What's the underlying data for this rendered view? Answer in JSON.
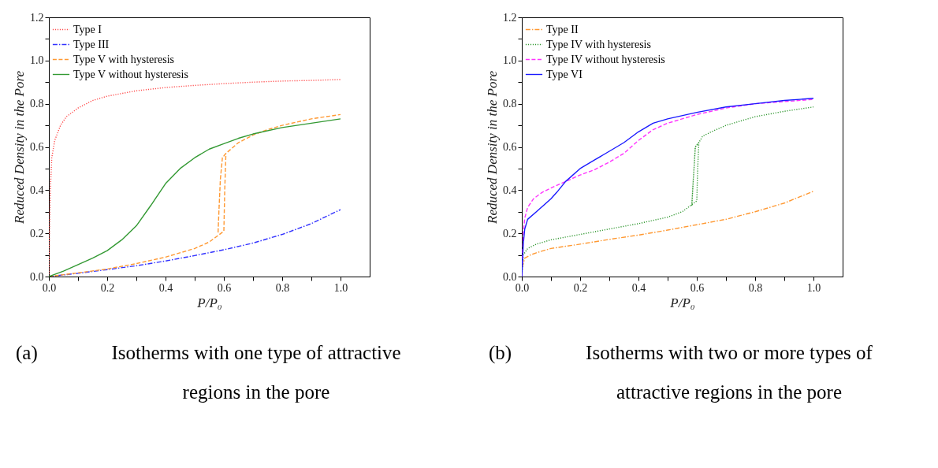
{
  "chart_data": [
    {
      "type": "line",
      "xlabel": "P/P₀",
      "ylabel": "Reduced Density in the Pore",
      "xlim": [
        0,
        1.1
      ],
      "ylim": [
        0,
        1.2
      ],
      "xticks": [
        {
          "value": 0,
          "label": "0.0"
        },
        {
          "value": 0.1,
          "label": null
        },
        0.2,
        {
          "value": 0.3,
          "label": null
        },
        0.4,
        {
          "value": 0.5,
          "label": null
        },
        0.6,
        {
          "value": 0.7,
          "label": null
        },
        0.8,
        {
          "value": 0.9,
          "label": null
        },
        {
          "value": 1,
          "label": "1.0"
        }
      ],
      "yticks": [
        {
          "value": 0,
          "label": "0.0"
        },
        {
          "value": 0.1,
          "label": null
        },
        0.2,
        {
          "value": 0.3,
          "label": null
        },
        0.4,
        {
          "value": 0.5,
          "label": null
        },
        0.6,
        {
          "value": 0.7,
          "label": null
        },
        0.8,
        {
          "value": 0.9,
          "label": null
        },
        {
          "value": 1,
          "label": "1.0"
        },
        {
          "value": 1.1,
          "label": null
        },
        1.2
      ],
      "grid": false,
      "legend": "top left",
      "marker": "none",
      "annotations": [
        "(a)",
        "Isotherms with one type of attractive regions in the pore"
      ],
      "series": [
        {
          "name": "Type I",
          "color": "#ff4d4d",
          "line_style": "dotted",
          "x": [
            0,
            0.002,
            0.005,
            0.01,
            0.02,
            0.04,
            0.06,
            0.1,
            0.15,
            0.2,
            0.3,
            0.4,
            0.5,
            0.6,
            0.7,
            0.8,
            0.9,
            1.0
          ],
          "values": [
            0,
            0.2,
            0.4,
            0.55,
            0.63,
            0.7,
            0.74,
            0.78,
            0.815,
            0.835,
            0.86,
            0.875,
            0.885,
            0.893,
            0.9,
            0.905,
            0.908,
            0.912
          ]
        },
        {
          "name": "Type III",
          "color": "#3333ff",
          "line_style": "dashdot",
          "x": [
            0,
            0.1,
            0.2,
            0.3,
            0.4,
            0.5,
            0.6,
            0.7,
            0.8,
            0.9,
            1.0
          ],
          "values": [
            0,
            0.015,
            0.032,
            0.05,
            0.072,
            0.097,
            0.124,
            0.155,
            0.195,
            0.245,
            0.31
          ]
        },
        {
          "name": "Type V with hysteresis",
          "color": "#ff9933",
          "line_style": "dashed",
          "x": [
            0,
            0.1,
            0.2,
            0.3,
            0.4,
            0.5,
            0.55,
            0.575,
            0.6,
            0.603,
            0.607,
            0.595,
            0.588,
            0.583,
            0.58,
            0.583,
            0.588,
            0.595,
            0.607,
            0.65,
            0.7,
            0.75,
            0.8,
            0.9,
            1.0
          ],
          "values": [
            0,
            0.017,
            0.035,
            0.06,
            0.09,
            0.13,
            0.16,
            0.185,
            0.21,
            0.4,
            0.57,
            0.55,
            0.45,
            0.3,
            0.2,
            0.3,
            0.45,
            0.55,
            0.57,
            0.62,
            0.655,
            0.68,
            0.7,
            0.73,
            0.75
          ]
        },
        {
          "name": "Type V without hysteresis",
          "color": "#339933",
          "line_style": "solid",
          "x": [
            0,
            0.05,
            0.1,
            0.15,
            0.2,
            0.25,
            0.3,
            0.35,
            0.4,
            0.45,
            0.5,
            0.55,
            0.6,
            0.65,
            0.7,
            0.8,
            0.9,
            1.0
          ],
          "values": [
            0,
            0.025,
            0.055,
            0.085,
            0.12,
            0.17,
            0.235,
            0.33,
            0.43,
            0.5,
            0.55,
            0.59,
            0.615,
            0.64,
            0.66,
            0.69,
            0.71,
            0.73
          ]
        }
      ]
    },
    {
      "type": "line",
      "xlabel": "P/P₀",
      "ylabel": "Reduced Density in the Pore",
      "xlim": [
        0,
        1.1
      ],
      "ylim": [
        0,
        1.2
      ],
      "xticks": [
        {
          "value": 0,
          "label": "0.0"
        },
        {
          "value": 0.1,
          "label": null
        },
        0.2,
        {
          "value": 0.3,
          "label": null
        },
        0.4,
        {
          "value": 0.5,
          "label": null
        },
        0.6,
        {
          "value": 0.7,
          "label": null
        },
        0.8,
        {
          "value": 0.9,
          "label": null
        },
        {
          "value": 1,
          "label": "1.0"
        }
      ],
      "yticks": [
        {
          "value": 0,
          "label": "0.0"
        },
        {
          "value": 0.1,
          "label": null
        },
        0.2,
        {
          "value": 0.3,
          "label": null
        },
        0.4,
        {
          "value": 0.5,
          "label": null
        },
        0.6,
        {
          "value": 0.7,
          "label": null
        },
        0.8,
        {
          "value": 0.9,
          "label": null
        },
        {
          "value": 1,
          "label": "1.0"
        },
        {
          "value": 1.1,
          "label": null
        },
        1.2
      ],
      "grid": false,
      "legend": "top left",
      "marker": "none",
      "annotations": [
        "(b)",
        "Isotherms with two or more types of attractive regions in the pore"
      ],
      "series": [
        {
          "name": "Type II",
          "color": "#ff9933",
          "line_style": "dashdot",
          "x": [
            0,
            0.003,
            0.01,
            0.03,
            0.05,
            0.1,
            0.2,
            0.3,
            0.4,
            0.5,
            0.6,
            0.7,
            0.8,
            0.9,
            1.0
          ],
          "values": [
            0,
            0.05,
            0.085,
            0.1,
            0.11,
            0.13,
            0.15,
            0.172,
            0.192,
            0.215,
            0.24,
            0.265,
            0.3,
            0.34,
            0.395
          ]
        },
        {
          "name": "Type IV with hysteresis",
          "color": "#339933",
          "line_style": "dotted",
          "x": [
            0,
            0.005,
            0.02,
            0.05,
            0.1,
            0.2,
            0.3,
            0.4,
            0.5,
            0.55,
            0.58,
            0.6,
            0.603,
            0.607,
            0.595,
            0.588,
            0.583,
            0.588,
            0.595,
            0.607,
            0.62,
            0.65,
            0.7,
            0.8,
            0.9,
            1.0
          ],
          "values": [
            0,
            0.1,
            0.13,
            0.15,
            0.17,
            0.195,
            0.22,
            0.245,
            0.275,
            0.3,
            0.33,
            0.35,
            0.5,
            0.62,
            0.6,
            0.45,
            0.33,
            0.45,
            0.6,
            0.62,
            0.65,
            0.67,
            0.7,
            0.74,
            0.765,
            0.785
          ]
        },
        {
          "name": "Type IV without hysteresis",
          "color": "#ff33ff",
          "line_style": "dashed",
          "x": [
            0,
            0.005,
            0.01,
            0.02,
            0.04,
            0.07,
            0.1,
            0.15,
            0.2,
            0.25,
            0.3,
            0.35,
            0.4,
            0.45,
            0.5,
            0.6,
            0.7,
            0.8,
            0.9,
            1.0
          ],
          "values": [
            0,
            0.2,
            0.27,
            0.32,
            0.36,
            0.39,
            0.41,
            0.44,
            0.47,
            0.495,
            0.53,
            0.57,
            0.63,
            0.68,
            0.71,
            0.75,
            0.78,
            0.8,
            0.81,
            0.82
          ]
        },
        {
          "name": "Type VI",
          "color": "#1a1aff",
          "line_style": "solid",
          "x": [
            0,
            0.005,
            0.01,
            0.02,
            0.05,
            0.1,
            0.12,
            0.15,
            0.2,
            0.25,
            0.3,
            0.35,
            0.4,
            0.45,
            0.5,
            0.6,
            0.7,
            0.8,
            0.9,
            1.0
          ],
          "values": [
            0,
            0.15,
            0.22,
            0.265,
            0.3,
            0.36,
            0.39,
            0.44,
            0.5,
            0.54,
            0.58,
            0.62,
            0.67,
            0.71,
            0.73,
            0.76,
            0.785,
            0.8,
            0.815,
            0.825
          ]
        }
      ]
    }
  ]
}
